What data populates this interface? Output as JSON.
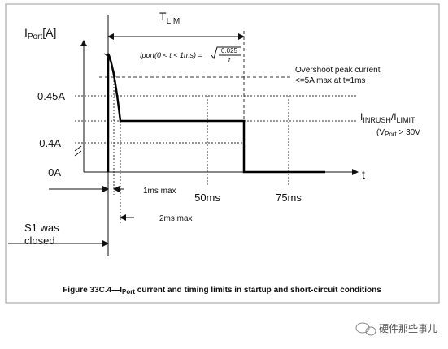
{
  "y_axis_label": {
    "main": "I",
    "sub": "Port",
    "unit": "[A]"
  },
  "t_lim": {
    "main": "T",
    "sub": "LIM"
  },
  "formula": {
    "lhs": "Iport(0 < t < 1ms) =",
    "numerator": "0.025",
    "denominator": "t"
  },
  "overshoot_note": [
    "Overshoot peak current",
    "<=5A max at t=1ms"
  ],
  "level_labels": [
    "0.45A",
    "0.4A",
    "0A"
  ],
  "limit_label": {
    "main1": "I",
    "sub1": "INRUSH",
    "main2": "/I",
    "sub2": "LIMIT"
  },
  "voltage_note": {
    "open": "(V",
    "sub": "Port",
    "rest": " > 30V"
  },
  "x_axis_label": "t",
  "time_labels": [
    "50ms",
    "75ms"
  ],
  "timing_notes": [
    "1ms max",
    "2ms max"
  ],
  "s1_note": [
    "S1 was",
    "closed"
  ],
  "caption": {
    "prefix": "Figure 33C.4—I",
    "sub": "Port",
    "rest": " current and timing limits in startup and short-circuit conditions"
  },
  "watermark": "硬件那些事儿"
}
